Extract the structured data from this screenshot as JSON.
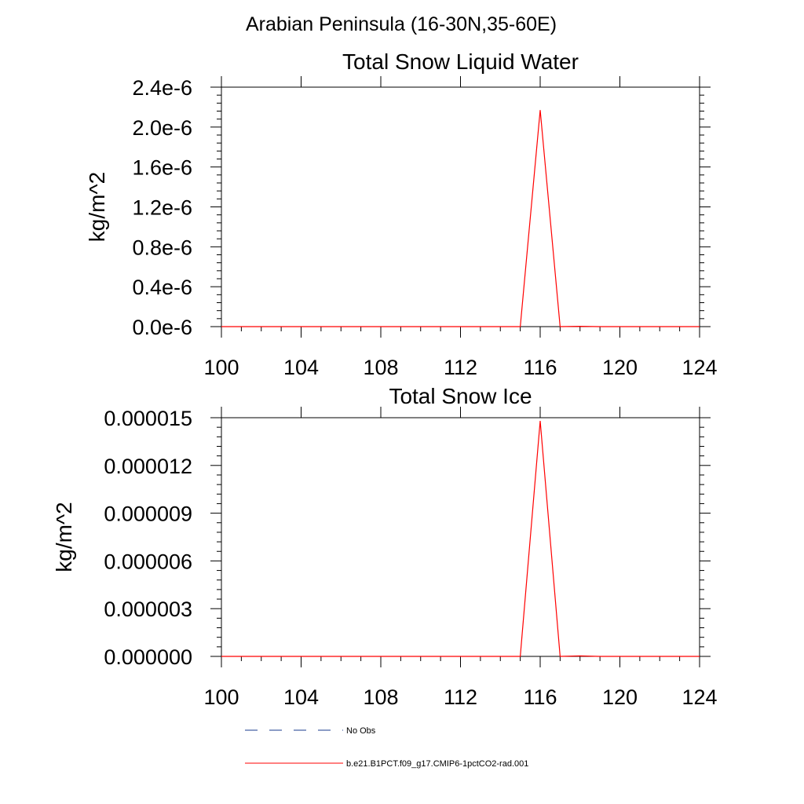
{
  "main_title": "Arabian Peninsula (16-30N,35-60E)",
  "colors": {
    "axis": "#000000",
    "series": "#ff0000",
    "obs": "#1a3b8c"
  },
  "legend": [
    {
      "label": "No Obs",
      "style": "dashed",
      "color": "#1a3b8c"
    },
    {
      "label": "b.e21.B1PCT.f09_g17.CMIP6-1pctCO2-rad.001",
      "style": "solid",
      "color": "#ff0000"
    }
  ],
  "chart_data": [
    {
      "type": "line",
      "title": "Total Snow Liquid Water",
      "ylabel": "kg/m^2",
      "xlabel": "",
      "xlim": [
        100,
        124
      ],
      "ylim": [
        0,
        2.4e-06
      ],
      "xticks": [
        100,
        104,
        108,
        112,
        116,
        120,
        124
      ],
      "xtick_labels": [
        "100",
        "104",
        "108",
        "112",
        "116",
        "120",
        "124"
      ],
      "yticks": [
        0,
        4e-07,
        8e-07,
        1.2e-06,
        1.6e-06,
        2e-06,
        2.4e-06
      ],
      "ytick_labels": [
        "0.0e-6",
        "0.4e-6",
        "0.8e-6",
        "1.2e-6",
        "1.6e-6",
        "2.0e-6",
        "2.4e-6"
      ],
      "series": [
        {
          "name": "b.e21.B1PCT.f09_g17.CMIP6-1pctCO2-rad.001",
          "x": [
            100,
            101,
            102,
            103,
            104,
            105,
            106,
            107,
            108,
            109,
            110,
            111,
            112,
            113,
            114,
            115,
            116,
            117,
            118,
            119,
            120,
            121,
            122,
            123,
            124
          ],
          "y": [
            0,
            0,
            0,
            0,
            0,
            0,
            0,
            0,
            0,
            0,
            0,
            0,
            0,
            0,
            0,
            0,
            2.17e-06,
            0,
            3e-09,
            0,
            0,
            0,
            0,
            0,
            0
          ]
        }
      ]
    },
    {
      "type": "line",
      "title": "Total Snow Ice",
      "ylabel": "kg/m^2",
      "xlabel": "",
      "xlim": [
        100,
        124
      ],
      "ylim": [
        0,
        1.5e-05
      ],
      "xticks": [
        100,
        104,
        108,
        112,
        116,
        120,
        124
      ],
      "xtick_labels": [
        "100",
        "104",
        "108",
        "112",
        "116",
        "120",
        "124"
      ],
      "yticks": [
        0,
        3e-06,
        6e-06,
        9e-06,
        1.2e-05,
        1.5e-05
      ],
      "ytick_labels": [
        "0.000000",
        "0.000003",
        "0.000006",
        "0.000009",
        "0.000012",
        "0.000015"
      ],
      "series": [
        {
          "name": "b.e21.B1PCT.f09_g17.CMIP6-1pctCO2-rad.001",
          "x": [
            100,
            101,
            102,
            103,
            104,
            105,
            106,
            107,
            108,
            109,
            110,
            111,
            112,
            113,
            114,
            115,
            116,
            117,
            118,
            119,
            120,
            121,
            122,
            123,
            124
          ],
          "y": [
            0,
            0,
            0,
            0,
            0,
            0,
            0,
            0,
            0,
            0,
            0,
            0,
            0,
            0,
            0,
            0,
            1.48e-05,
            0,
            3e-08,
            0,
            0,
            0,
            0,
            0,
            0
          ]
        }
      ]
    }
  ]
}
